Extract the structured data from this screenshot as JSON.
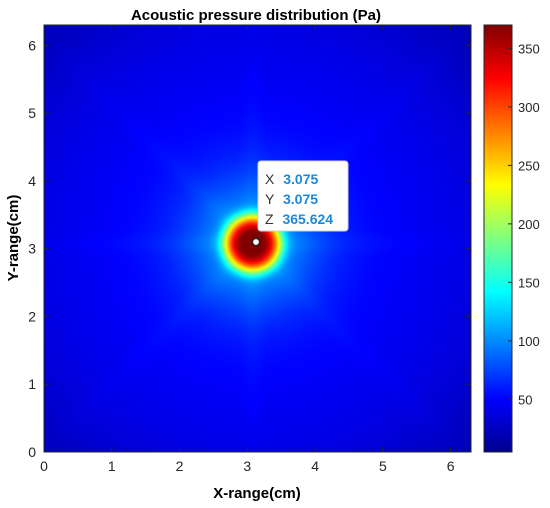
{
  "chart_data": {
    "type": "heatmap",
    "title": "Acoustic pressure distribution (Pa)",
    "xlabel": "X-range(cm)",
    "ylabel": "Y-range(cm)",
    "xlim": [
      0,
      6.3
    ],
    "ylim": [
      0,
      6.3
    ],
    "x_ticks": [
      0,
      1,
      2,
      3,
      4,
      5,
      6
    ],
    "y_ticks": [
      0,
      1,
      2,
      3,
      4,
      5,
      6
    ],
    "colorbar": {
      "range": [
        5,
        370
      ],
      "ticks": [
        50,
        100,
        150,
        200,
        250,
        300,
        350
      ],
      "colormap": "jet"
    },
    "field": {
      "background_pa": 55,
      "edge_pa": 25,
      "peak_pa": 365.624,
      "peak_x": 3.075,
      "peak_y": 3.075
    },
    "datatip": {
      "x_label": "X",
      "x_value": "3.075",
      "y_label": "Y",
      "y_value": "3.075",
      "z_label": "Z",
      "z_value": "365.624"
    },
    "grid": false
  }
}
